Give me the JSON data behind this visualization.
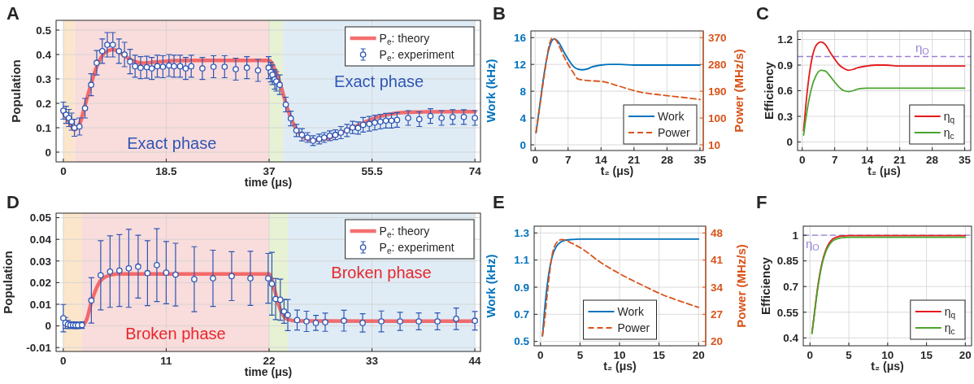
{
  "chart_data": [
    {
      "type": "line",
      "title": "A",
      "xlabel": "time (μs)",
      "ylabel": "Population",
      "xlim": [
        -1.3,
        75
      ],
      "ylim": [
        -0.04,
        0.54
      ],
      "xticks": [
        0,
        18.5,
        37,
        55.5,
        74
      ],
      "yticks": [
        0,
        0.1,
        0.2,
        0.3,
        0.4,
        0.5
      ],
      "grid": true,
      "legend": "top right",
      "bands": [
        {
          "axis": "x",
          "from": 0,
          "to": 2,
          "color": "#fbe6cc"
        },
        {
          "axis": "x",
          "from": 2,
          "to": 37,
          "color": "#f9dcdc",
          "label": "Exact phase"
        },
        {
          "axis": "x",
          "from": 37,
          "to": 39.5,
          "color": "#e7f1d4"
        },
        {
          "axis": "x",
          "from": 39.5,
          "to": 74,
          "color": "#e0ecf5",
          "label": "Exact phase"
        }
      ],
      "series": [
        {
          "name": "P$_{e}$: theory",
          "color": "#f25656",
          "x": [
            0,
            1,
            2,
            3,
            4,
            5,
            6,
            7,
            8,
            9,
            10,
            11,
            12,
            13,
            14,
            16,
            18,
            20,
            25,
            30,
            37,
            38,
            39,
            40,
            41,
            42,
            43,
            44,
            45,
            46,
            48,
            50,
            52,
            54,
            56,
            58,
            60,
            62,
            65,
            70,
            74
          ],
          "values": [
            0.16,
            0.125,
            0.092,
            0.12,
            0.2,
            0.28,
            0.35,
            0.395,
            0.415,
            0.42,
            0.41,
            0.395,
            0.38,
            0.37,
            0.365,
            0.368,
            0.372,
            0.375,
            0.376,
            0.376,
            0.376,
            0.34,
            0.28,
            0.2,
            0.135,
            0.09,
            0.065,
            0.052,
            0.048,
            0.05,
            0.06,
            0.08,
            0.1,
            0.12,
            0.14,
            0.152,
            0.16,
            0.163,
            0.165,
            0.166,
            0.166
          ]
        },
        {
          "name": "P$_{e}$: experiment",
          "type": "scatter",
          "marker": "circle",
          "color": "#2f56b4",
          "x": [
            0,
            0.5,
            1,
            1.5,
            2,
            2.9,
            3.9,
            5,
            6,
            7,
            7.9,
            8.9,
            10,
            11,
            12,
            12.9,
            13.9,
            15,
            15.9,
            16.9,
            17.9,
            19,
            19.9,
            21,
            22,
            23,
            25,
            27,
            29,
            31,
            33,
            35,
            36.9,
            37.3,
            37.6,
            38,
            38.3,
            38.9,
            40,
            40.9,
            41.9,
            42.9,
            43.9,
            44.9,
            46,
            46.9,
            47.9,
            48.9,
            49.9,
            51,
            52,
            53,
            53.9,
            55,
            56,
            57,
            58,
            59,
            60,
            62,
            64,
            66,
            68,
            70,
            72,
            74
          ],
          "values": [
            0.17,
            0.153,
            0.14,
            0.125,
            0.1,
            0.105,
            0.18,
            0.276,
            0.366,
            0.414,
            0.44,
            0.44,
            0.414,
            0.4,
            0.371,
            0.352,
            0.346,
            0.348,
            0.343,
            0.352,
            0.35,
            0.355,
            0.352,
            0.352,
            0.343,
            0.352,
            0.343,
            0.35,
            0.35,
            0.34,
            0.346,
            0.335,
            0.346,
            0.328,
            0.317,
            0.298,
            0.29,
            0.276,
            0.195,
            0.138,
            0.089,
            0.071,
            0.06,
            0.047,
            0.054,
            0.06,
            0.067,
            0.071,
            0.08,
            0.089,
            0.101,
            0.099,
            0.112,
            0.116,
            0.121,
            0.125,
            0.129,
            0.129,
            0.132,
            0.14,
            0.135,
            0.148,
            0.14,
            0.144,
            0.144,
            0.14
          ],
          "errors": [
            0.035,
            0.035,
            0.035,
            0.035,
            0.035,
            0.035,
            0.04,
            0.045,
            0.05,
            0.05,
            0.05,
            0.05,
            0.05,
            0.05,
            0.05,
            0.045,
            0.045,
            0.045,
            0.045,
            0.045,
            0.045,
            0.045,
            0.045,
            0.045,
            0.045,
            0.045,
            0.045,
            0.045,
            0.045,
            0.045,
            0.045,
            0.045,
            0.045,
            0.04,
            0.04,
            0.04,
            0.04,
            0.04,
            0.03,
            0.03,
            0.025,
            0.025,
            0.02,
            0.02,
            0.02,
            0.02,
            0.02,
            0.02,
            0.025,
            0.025,
            0.025,
            0.025,
            0.03,
            0.03,
            0.03,
            0.03,
            0.03,
            0.03,
            0.03,
            0.03,
            0.03,
            0.03,
            0.03,
            0.03,
            0.03,
            0.03
          ]
        }
      ]
    },
    {
      "type": "line",
      "title": "B",
      "xlabel": "t₂ (μs)",
      "ylabel": "Work (kHz)",
      "y2label": "Power (MHz/s)",
      "xlim": [
        -0.9,
        35.7
      ],
      "ylim": [
        -0.85,
        17
      ],
      "y2lim": [
        -9.1,
        392.5
      ],
      "xticks": [
        0,
        7,
        14,
        21,
        28,
        35
      ],
      "yticks": [
        0,
        4,
        8,
        12,
        16
      ],
      "y2ticks": [
        10,
        100,
        190,
        280,
        370
      ],
      "grid": true,
      "legend": "bottom right",
      "series": [
        {
          "name": "Work",
          "color": "#0072bd",
          "x": [
            0.2,
            1,
            2,
            3,
            4,
            5,
            6,
            7,
            8,
            9,
            10,
            11,
            12,
            14,
            16,
            18,
            21,
            28,
            35
          ],
          "values": [
            1.8,
            6,
            11,
            14.5,
            15.8,
            15.3,
            14,
            12.8,
            11.8,
            11.3,
            11.2,
            11.3,
            11.6,
            11.9,
            12,
            12,
            11.9,
            11.9,
            11.9
          ]
        },
        {
          "name": "Power",
          "color": "#d95319",
          "axis": "y2",
          "line_style": "dashed",
          "x": [
            0.2,
            1,
            2,
            3,
            3.6,
            4.5,
            5.2,
            6,
            7.2,
            8,
            9.1,
            11,
            14.1,
            17.8,
            21.7,
            27,
            31,
            35
          ],
          "values": [
            52,
            140,
            250,
            345,
            368,
            360,
            338,
            310,
            275,
            255,
            231,
            226,
            223,
            207,
            189,
            177,
            170,
            162
          ]
        }
      ]
    },
    {
      "type": "line",
      "title": "C",
      "xlabel": "t₂ (μs)",
      "ylabel": "Efficiency",
      "xlim": [
        -1,
        36.3
      ],
      "ylim": [
        -0.1,
        1.3
      ],
      "xticks": [
        0,
        7,
        14,
        21,
        28,
        35
      ],
      "yticks": [
        0,
        0.3,
        0.6,
        0.9,
        1.2
      ],
      "grid": true,
      "legend": "bottom right",
      "ref_lines": [
        {
          "axis": "y",
          "value": 1,
          "label": "η$_{O}$",
          "color": "#9b7fd4",
          "line_style": "dashed"
        }
      ],
      "series": [
        {
          "name": "η$_{q}$",
          "color": "#e31a1c",
          "x": [
            0.3,
            1,
            2,
            3,
            4,
            5,
            6,
            7,
            8,
            9,
            10,
            11,
            12,
            14,
            16,
            18,
            21,
            28,
            35
          ],
          "values": [
            0.13,
            0.55,
            0.95,
            1.13,
            1.17,
            1.14,
            1.05,
            0.97,
            0.9,
            0.86,
            0.84,
            0.85,
            0.87,
            0.89,
            0.9,
            0.9,
            0.89,
            0.89,
            0.89
          ]
        },
        {
          "name": "η$_{c}$",
          "color": "#4aa52e",
          "x": [
            0.3,
            1,
            2,
            3,
            4,
            5,
            6,
            7,
            8,
            9,
            10,
            11,
            12,
            14,
            16,
            21,
            35
          ],
          "values": [
            0.08,
            0.35,
            0.63,
            0.78,
            0.84,
            0.83,
            0.77,
            0.7,
            0.64,
            0.6,
            0.59,
            0.6,
            0.62,
            0.63,
            0.63,
            0.63,
            0.63
          ]
        }
      ]
    },
    {
      "type": "line",
      "title": "D",
      "xlabel": "time (μs)",
      "ylabel": "Population",
      "xlim": [
        -0.77,
        44.6
      ],
      "ylim": [
        -0.0118,
        0.0521
      ],
      "xticks": [
        0,
        11,
        22,
        33,
        44
      ],
      "yticks": [
        -0.01,
        0,
        0.01,
        0.02,
        0.03,
        0.04,
        0.05
      ],
      "grid": true,
      "legend": "top right",
      "bands": [
        {
          "axis": "x",
          "from": 0,
          "to": 2,
          "color": "#fbe6cc"
        },
        {
          "axis": "x",
          "from": 2,
          "to": 22,
          "color": "#f9dcdc",
          "label": "Broken phase"
        },
        {
          "axis": "x",
          "from": 22,
          "to": 24,
          "color": "#e7f1d4"
        },
        {
          "axis": "x",
          "from": 24,
          "to": 44,
          "color": "#e0ecf5",
          "label": "Broken phase"
        }
      ],
      "series": [
        {
          "name": "P$_{e}$: theory",
          "color": "#f25656",
          "x": [
            1,
            2,
            2.5,
            3,
            3.5,
            4,
            5,
            6,
            22,
            22.5,
            23,
            23.5,
            24,
            25,
            44
          ],
          "values": [
            0.0006,
            0.0003,
            0.003,
            0.011,
            0.017,
            0.021,
            0.0235,
            0.024,
            0.024,
            0.018,
            0.01,
            0.005,
            0.003,
            0.0023,
            0.0022
          ]
        },
        {
          "name": "P$_{e}$: experiment",
          "type": "scatter",
          "marker": "circle",
          "color": "#2f56b4",
          "x": [
            0,
            0.23,
            0.5,
            0.77,
            1.04,
            1.3,
            1.57,
            2,
            3,
            4,
            5,
            6,
            7,
            8,
            9,
            10,
            11,
            12,
            14,
            16,
            18,
            20,
            21.9,
            22.3,
            22.7,
            23.2,
            23.6,
            24,
            25,
            26,
            27,
            28,
            30,
            32,
            34,
            36,
            38,
            40,
            42,
            44
          ],
          "values": [
            0.0036,
            0.0014,
            0.0007,
            0.0004,
            0.0004,
            0.0003,
            0.0003,
            0.0004,
            0.0118,
            0.0234,
            0.0251,
            0.0256,
            0.0266,
            0.0274,
            0.0244,
            0.0281,
            0.0246,
            0.0237,
            0.0216,
            0.022,
            0.023,
            0.022,
            0.022,
            0.0195,
            0.0124,
            0.0121,
            0.0067,
            0.005,
            0.0027,
            0.0021,
            0.0014,
            0.0017,
            0.0024,
            0.0014,
            0.0021,
            0.0021,
            0.0021,
            0.0021,
            0.0033,
            0.0024
          ],
          "errors": [
            0.0063,
            0.0025,
            0.0018,
            0.0015,
            0.0015,
            0.0015,
            0.0015,
            0.0015,
            0.0105,
            0.016,
            0.0165,
            0.0166,
            0.018,
            0.0145,
            0.015,
            0.0168,
            0.0144,
            0.0145,
            0.015,
            0.013,
            0.0113,
            0.0125,
            0.0115,
            0.0145,
            0.0095,
            0.0095,
            0.0055,
            0.0072,
            0.0046,
            0.0047,
            0.0035,
            0.0042,
            0.0048,
            0.0042,
            0.0048,
            0.0042,
            0.0039,
            0.0039,
            0.005,
            0.0043
          ]
        }
      ]
    },
    {
      "type": "line",
      "title": "E",
      "xlabel": "t₂ (μs)",
      "ylabel": "Work (kHz)",
      "y2label": "Power (MHz/s)",
      "xlim": [
        -0.8,
        20.9
      ],
      "ylim": [
        0.468,
        1.35
      ],
      "y2lim": [
        18.88,
        49.75
      ],
      "xticks": [
        0,
        5,
        10,
        15,
        20
      ],
      "yticks": [
        0.5,
        0.7,
        0.9,
        1.1,
        1.3
      ],
      "y2ticks": [
        20,
        27,
        34,
        41,
        48
      ],
      "grid": true,
      "legend": "bottom",
      "series": [
        {
          "name": "Work",
          "color": "#0072bd",
          "x": [
            0.25,
            0.5,
            1,
            1.5,
            2,
            2.5,
            3,
            4,
            5,
            20
          ],
          "values": [
            0.54,
            0.72,
            0.98,
            1.13,
            1.2,
            1.23,
            1.245,
            1.252,
            1.255,
            1.255
          ]
        },
        {
          "name": "Power",
          "color": "#d95319",
          "axis": "y2",
          "line_style": "dashed",
          "x": [
            0.25,
            0.5,
            0.9,
            1.45,
            2,
            2.7,
            4,
            5.2,
            7.6,
            10.1,
            13.1,
            15.5,
            17.8,
            20
          ],
          "values": [
            21.5,
            25,
            33,
            42,
            45.4,
            46.3,
            45.3,
            44,
            40.4,
            37.4,
            34.3,
            32,
            30.3,
            28.8
          ]
        }
      ]
    },
    {
      "type": "line",
      "title": "F",
      "xlabel": "t₂ (μs)",
      "ylabel": "Efficiency",
      "xlim": [
        -0.87,
        20.8
      ],
      "ylim": [
        0.354,
        1.053
      ],
      "xticks": [
        0,
        5,
        10,
        15,
        20
      ],
      "yticks": [
        0.4,
        0.55,
        0.7,
        0.85,
        1
      ],
      "grid": true,
      "legend": "bottom right",
      "ref_lines": [
        {
          "axis": "y",
          "value": 1,
          "label": "η$_{O}$",
          "color": "#9b7fd4",
          "line_style": "dashed"
        }
      ],
      "series": [
        {
          "name": "η$_{q}$",
          "color": "#e31a1c",
          "x": [
            0.25,
            0.5,
            1,
            1.5,
            2,
            2.5,
            3,
            4,
            5,
            20
          ],
          "values": [
            0.43,
            0.52,
            0.7,
            0.83,
            0.91,
            0.955,
            0.98,
            0.995,
            0.998,
            0.998
          ]
        },
        {
          "name": "η$_{c}$",
          "color": "#4aa52e",
          "x": [
            0.25,
            0.5,
            1,
            1.5,
            2,
            2.5,
            3,
            4,
            5,
            20
          ],
          "values": [
            0.425,
            0.515,
            0.69,
            0.82,
            0.9,
            0.945,
            0.97,
            0.985,
            0.988,
            0.988
          ]
        }
      ]
    }
  ]
}
